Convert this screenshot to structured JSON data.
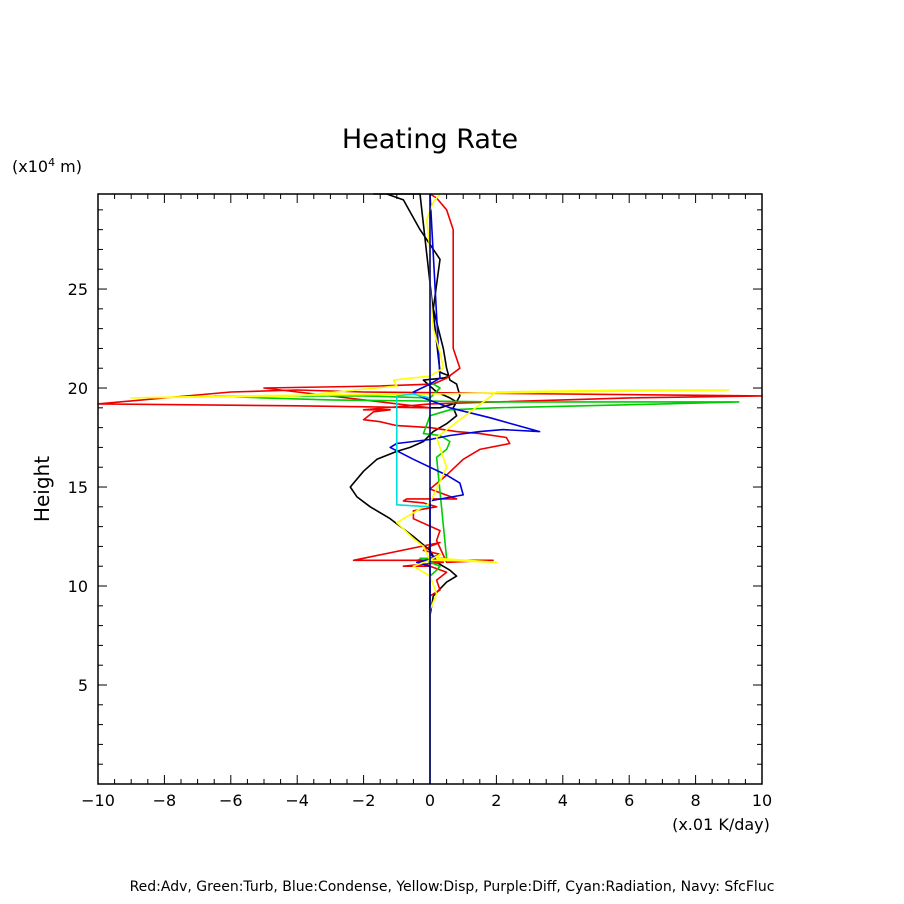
{
  "chart_data": {
    "type": "line",
    "title": "Heating Rate",
    "ylabel": "Height",
    "y_unit_prefix": "(x10",
    "y_unit_exp": "4",
    "y_unit_suffix": " m)",
    "x_unit": "(x.01 K/day)",
    "xlim": [
      -10,
      10
    ],
    "ylim": [
      0,
      29.8
    ],
    "xticks": [
      -10,
      -8,
      -6,
      -4,
      -2,
      0,
      2,
      4,
      6,
      8,
      10
    ],
    "xtick_labels": [
      "−10",
      "−8",
      "−6",
      "−4",
      "−2",
      "0",
      "2",
      "4",
      "6",
      "8",
      "10"
    ],
    "yticks": [
      5,
      10,
      15,
      20,
      25
    ],
    "ytick_labels": [
      "5",
      "10",
      "15",
      "20",
      "25"
    ],
    "legend_text": "Red:Adv, Green:Turb, Blue:Condense, Yellow:Disp, Purple:Diff, Cyan:Radiation, Navy: SfcFluc",
    "series": [
      {
        "color": "#000000",
        "x": [
          0,
          0,
          0.1,
          0.5,
          0.8,
          0.6,
          0.2,
          0,
          -0.5,
          -1.2,
          -1.8,
          -2.2,
          -2.4,
          -2.0,
          -1.6,
          -1.0,
          -0.6,
          -0.2,
          0.1,
          0.5,
          0.8,
          0.7,
          0.9,
          0.8,
          0.6,
          0.5,
          0.4,
          0.1,
          0.3,
          -0.3,
          -0.8,
          -1.3,
          -1.7,
          -1.4,
          -1.0,
          -0.5,
          -0.3,
          0.3,
          0.6,
          0.4,
          -0.2,
          0.2,
          0.6,
          0.8,
          0.7,
          0.5,
          0.3,
          0,
          0,
          0
        ],
        "y": [
          0,
          8.5,
          9.5,
          10.2,
          10.5,
          10.8,
          11.2,
          11.8,
          12.5,
          13.4,
          14.0,
          14.5,
          15.0,
          15.8,
          16.4,
          16.8,
          17.0,
          17.3,
          17.8,
          18.2,
          18.6,
          19.0,
          19.6,
          20.2,
          20.4,
          21.0,
          22.0,
          24.0,
          26.5,
          28.0,
          29.5,
          29.8,
          29.8,
          29.8,
          29.8,
          29.8,
          29.8,
          20.8,
          20.6,
          20.5,
          20.4,
          19.8,
          19.5,
          19.3,
          19.2,
          19.1,
          19.0,
          19.0,
          19.0,
          19.0
        ]
      },
      {
        "color": "#ee0000",
        "x": [
          0,
          0,
          0.3,
          0.2,
          0.5,
          0,
          -0.8,
          0.4,
          -0.4,
          0,
          0.3,
          -0.2,
          0,
          0.3,
          -2.3,
          -0.2,
          1.9,
          0.5,
          0.2,
          0.3,
          -0.5,
          -0.5,
          0.2,
          -0.2,
          -0.8,
          -0.7,
          0.8,
          0,
          0.5,
          1.0,
          1.5,
          2.4,
          2.3,
          1.5,
          0.8,
          0,
          -1.0,
          -1.5,
          -2.0,
          -1.7,
          -1.2,
          -2.0,
          0,
          2.0,
          6.0,
          10.0,
          4.0,
          -2.0,
          -4.0,
          -6.0,
          -10.0,
          -4.0,
          0,
          -5.0,
          -1.5,
          0.1,
          0.5,
          0.9,
          0.7,
          0.7,
          0.7,
          0.7,
          0.7,
          0.5,
          0.2,
          0
        ],
        "y": [
          0,
          9.5,
          9.8,
          10.3,
          10.7,
          11.0,
          11.0,
          11.2,
          11.3,
          11.4,
          11.6,
          11.8,
          12.0,
          12.2,
          11.3,
          11.3,
          11.3,
          11.2,
          12.3,
          12.8,
          13.4,
          13.8,
          14.0,
          14.2,
          14.3,
          14.4,
          14.4,
          14.9,
          15.6,
          16.4,
          16.9,
          17.2,
          17.5,
          17.7,
          17.8,
          18.0,
          18.1,
          18.3,
          18.4,
          18.8,
          18.9,
          18.9,
          19.2,
          19.3,
          19.5,
          19.6,
          19.7,
          19.8,
          19.9,
          19.8,
          19.2,
          19.1,
          19.0,
          20.0,
          20.1,
          20.2,
          20.5,
          21.0,
          22.0,
          24.0,
          26.0,
          27.0,
          28.0,
          29.0,
          29.6,
          29.8
        ]
      },
      {
        "color": "#00cc00",
        "x": [
          0,
          0,
          0.2,
          0.3,
          0,
          -0.3,
          0.5,
          0.2,
          0.5,
          0.6,
          0.3,
          -0.2,
          0,
          0.6,
          2.0,
          7.0,
          9.3,
          2.0,
          -3.0,
          -5.0,
          -6.5,
          -2.0,
          0,
          0.3,
          0
        ],
        "y": [
          0,
          10.5,
          10.8,
          11.0,
          11.2,
          11.4,
          11.4,
          16.5,
          16.9,
          17.3,
          17.6,
          17.7,
          18.6,
          18.9,
          19.0,
          19.2,
          19.3,
          19.3,
          19.4,
          19.5,
          19.6,
          19.6,
          19.5,
          20.0,
          20.3
        ]
      },
      {
        "color": "#0000dd",
        "x": [
          0,
          0,
          -0.4,
          0.2,
          0,
          0,
          1.0,
          0.9,
          0.5,
          -0.5,
          -1.2,
          -1.0,
          0,
          0.6,
          1.5,
          2.2,
          3.3,
          1.8,
          0.6,
          -0.2,
          -0.5,
          0,
          0.3,
          0
        ],
        "y": [
          0,
          11.0,
          11.2,
          11.4,
          11.6,
          14.3,
          14.6,
          15.2,
          15.6,
          16.4,
          17.0,
          17.2,
          17.4,
          17.6,
          17.8,
          17.9,
          17.8,
          18.5,
          19.0,
          19.5,
          19.8,
          20.2,
          20.5,
          29.8
        ]
      },
      {
        "color": "#ffff00",
        "x": [
          0,
          0,
          0.2,
          0,
          -0.5,
          0,
          0.3,
          0.2,
          2.0,
          0.5,
          0,
          -0.2,
          -0.5,
          -1.0,
          0,
          0.5,
          0.2,
          2.0,
          6.0,
          9.0,
          4.0,
          0,
          -6.0,
          -9.0,
          -4.0,
          -1.0,
          -1.1,
          0,
          0.4,
          0.3,
          0.1,
          0,
          0,
          -0.1,
          0.1,
          0.3
        ],
        "y": [
          0,
          8.8,
          9.6,
          10.5,
          11.0,
          11.3,
          11.6,
          11.4,
          11.2,
          11.3,
          11.3,
          12.0,
          12.4,
          13.2,
          14.2,
          16.0,
          17.5,
          19.8,
          19.9,
          19.9,
          19.8,
          19.7,
          19.6,
          19.5,
          19.6,
          20.1,
          20.4,
          20.6,
          21.0,
          21.8,
          23.0,
          25.0,
          27.0,
          28.5,
          29.4,
          29.8
        ]
      },
      {
        "color": "#00dddd",
        "x": [
          0,
          -1.0,
          -1.0,
          -0.5,
          -0.3,
          0,
          0
        ],
        "y": [
          14.0,
          14.1,
          19.6,
          19.7,
          19.6,
          19.5,
          19.3
        ]
      },
      {
        "color": "#000080",
        "x": [
          0,
          0
        ],
        "y": [
          0,
          29.8
        ]
      }
    ]
  }
}
